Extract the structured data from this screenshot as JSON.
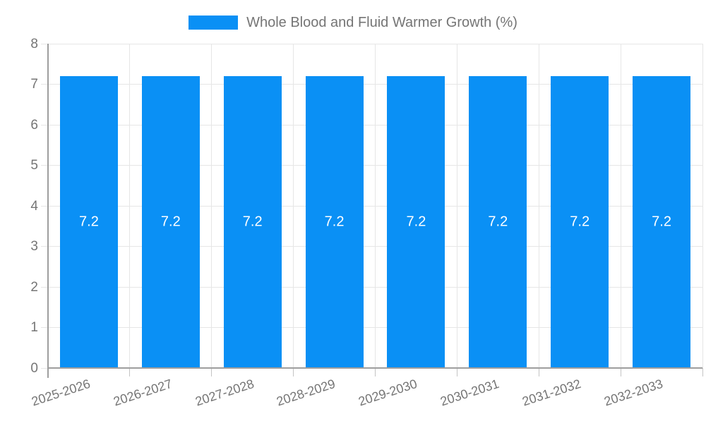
{
  "legend": {
    "label": "Whole Blood and Fluid Warmer Growth (%)"
  },
  "chart_data": {
    "type": "bar",
    "title": "",
    "xlabel": "",
    "ylabel": "",
    "categories": [
      "2025-2026",
      "2026-2027",
      "2027-2028",
      "2028-2029",
      "2029-2030",
      "2030-2031",
      "2031-2032",
      "2032-2033"
    ],
    "series": [
      {
        "name": "Whole Blood and Fluid Warmer Growth (%)",
        "values": [
          7.2,
          7.2,
          7.2,
          7.2,
          7.2,
          7.2,
          7.2,
          7.2
        ],
        "value_labels": [
          "7.2",
          "7.2",
          "7.2",
          "7.2",
          "7.2",
          "7.2",
          "7.2",
          "7.2"
        ]
      }
    ],
    "ylim": [
      0,
      8
    ],
    "yticks": [
      0,
      1,
      2,
      3,
      4,
      5,
      6,
      7,
      8
    ],
    "ytick_labels": [
      "0",
      "1",
      "2",
      "3",
      "4",
      "5",
      "6",
      "7",
      "8"
    ],
    "grid": true,
    "legend_position": "top",
    "x_label_rotation_deg": -18
  },
  "colors": {
    "bar": "#0a90f5",
    "legend_text": "#757575",
    "axis_label": "#757575",
    "value_label": "#ffffff",
    "axis_line": "#9e9e9e",
    "gridline": "#e6e6e6",
    "tick": "#c4c4c4",
    "background": "#ffffff"
  }
}
